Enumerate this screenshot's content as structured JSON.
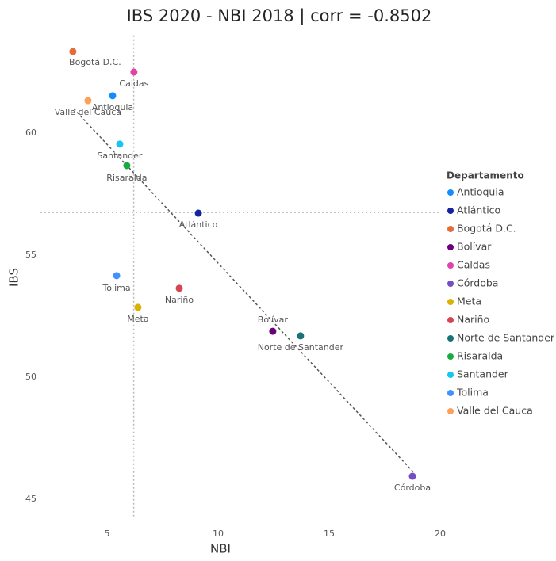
{
  "chart_data": {
    "type": "scatter",
    "title": "IBS 2020 - NBI 2018 | corr = -0.8502",
    "x_label": "NBI",
    "y_label": "IBS",
    "legend_title": "Departamento",
    "legend_position": "right",
    "xlim": [
      2,
      20
    ],
    "xticks": [
      5,
      10,
      15,
      20
    ],
    "ylim": [
      44.2,
      64
    ],
    "yticks": [
      45,
      50,
      55,
      60
    ],
    "reference_lines": {
      "x": 6.2,
      "y": 56.75
    },
    "trendline": {
      "x": [
        3.5,
        18.8
      ],
      "y": [
        61.0,
        46.1
      ]
    },
    "series": [
      {
        "name": "Antioquia",
        "color": "#118dff",
        "x": [
          5.25
        ],
        "y": [
          61.53
        ]
      },
      {
        "name": "Atlántico",
        "color": "#12239e",
        "x": [
          9.11
        ],
        "y": [
          56.72
        ]
      },
      {
        "name": "Bogotá D.C.",
        "color": "#e66c37",
        "x": [
          3.46
        ],
        "y": [
          63.34
        ]
      },
      {
        "name": "Bolívar",
        "color": "#6b007b",
        "x": [
          12.46
        ],
        "y": [
          51.88
        ]
      },
      {
        "name": "Caldas",
        "color": "#e044a7",
        "x": [
          6.21
        ],
        "y": [
          62.5
        ]
      },
      {
        "name": "Córdoba",
        "color": "#744ec2",
        "x": [
          18.75
        ],
        "y": [
          45.94
        ]
      },
      {
        "name": "Meta",
        "color": "#d9b300",
        "x": [
          6.39
        ],
        "y": [
          52.86
        ]
      },
      {
        "name": "Nariño",
        "color": "#d64550",
        "x": [
          8.25
        ],
        "y": [
          53.64
        ]
      },
      {
        "name": "Norte de Santander",
        "color": "#197278",
        "x": [
          13.71
        ],
        "y": [
          51.69
        ]
      },
      {
        "name": "Risaralda",
        "color": "#1aab40",
        "x": [
          5.89
        ],
        "y": [
          58.67
        ]
      },
      {
        "name": "Santander",
        "color": "#15c6f4",
        "x": [
          5.57
        ],
        "y": [
          59.55
        ]
      },
      {
        "name": "Tolima",
        "color": "#4092ff",
        "x": [
          5.43
        ],
        "y": [
          54.16
        ]
      },
      {
        "name": "Valle del Cauca",
        "color": "#ffa058",
        "x": [
          4.14
        ],
        "y": [
          61.33
        ]
      }
    ]
  }
}
